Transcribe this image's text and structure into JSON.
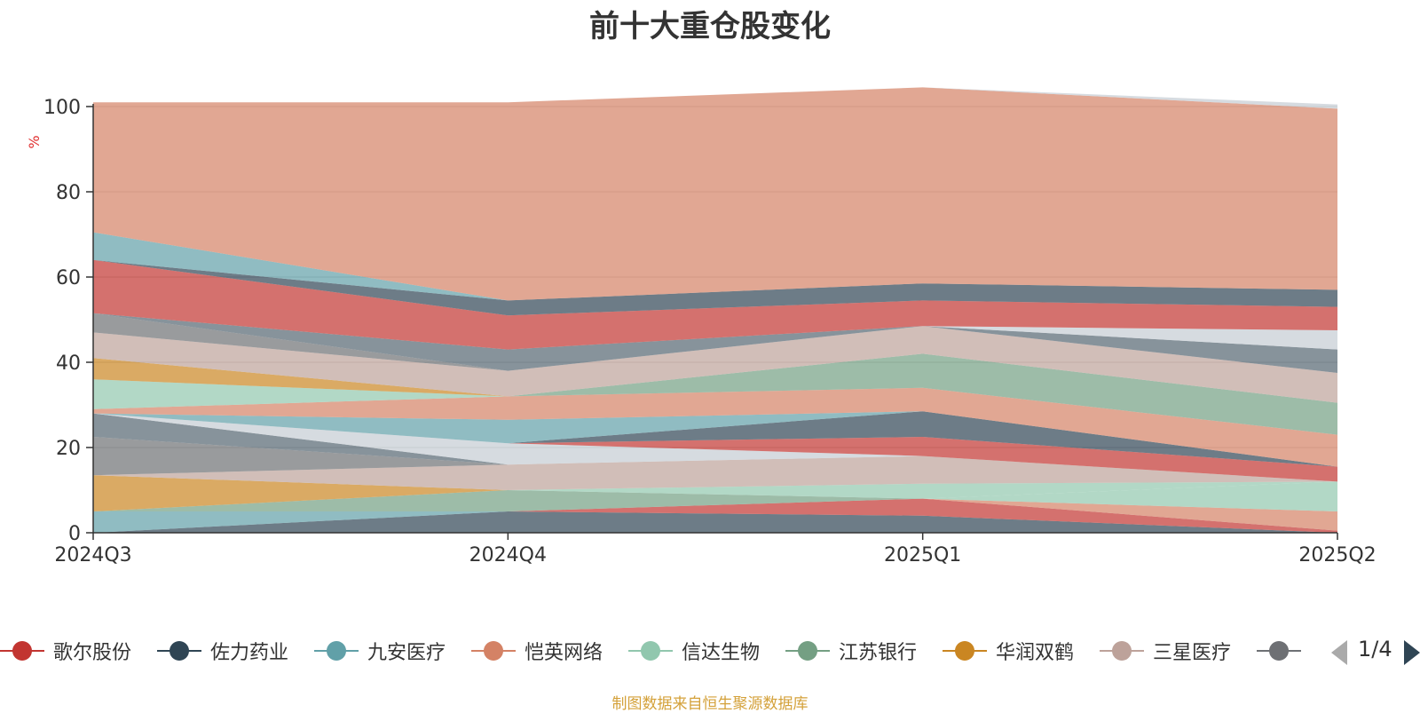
{
  "chart_data": {
    "type": "area",
    "title": "前十大重仓股变化",
    "ylabel": "%",
    "ylim": [
      0,
      100
    ],
    "yticks": [
      0,
      20,
      40,
      60,
      80,
      100
    ],
    "categories": [
      "2024Q3",
      "2024Q4",
      "2025Q1",
      "2025Q2"
    ],
    "stacked_percent": true,
    "series": [
      {
        "color": "#2f4554",
        "values": [
          0.0,
          5.0,
          4.0,
          0.0
        ]
      },
      {
        "color": "#c23531",
        "values": [
          0.0,
          0.0,
          4.0,
          0.5
        ]
      },
      {
        "color": "#d48265",
        "values": [
          0.0,
          0.0,
          0.0,
          4.5
        ]
      },
      {
        "color": "#91c7ae",
        "values": [
          0.0,
          0.0,
          0.0,
          7.0
        ]
      },
      {
        "color": "#61a0a8",
        "values": [
          5.0,
          0.0,
          0.0,
          0.0
        ]
      },
      {
        "color": "#749f83",
        "values": [
          0.0,
          5.0,
          0.0,
          0.0
        ]
      },
      {
        "color": "#91c7ae",
        "values": [
          0.0,
          0.0,
          3.5,
          0.0
        ]
      },
      {
        "color": "#ca8622",
        "values": [
          8.5,
          0.0,
          0.0,
          0.0
        ]
      },
      {
        "color": "#bda29a",
        "values": [
          0.0,
          6.0,
          6.5,
          0.0
        ]
      },
      {
        "color": "#6e7074",
        "values": [
          9.0,
          0.0,
          0.0,
          0.0
        ]
      },
      {
        "color": "#2f4554",
        "values": [
          0.0,
          0.0,
          0.0,
          0.0
        ]
      },
      {
        "color": "#546570",
        "values": [
          5.5,
          0.0,
          0.0,
          0.0
        ]
      },
      {
        "color": "#c4ccd3",
        "values": [
          0.0,
          5.0,
          0.0,
          0.0
        ]
      },
      {
        "color": "#c23531",
        "values": [
          0.0,
          0.0,
          4.5,
          3.5
        ]
      },
      {
        "color": "#2f4554",
        "values": [
          0.0,
          0.0,
          6.0,
          0.0
        ]
      },
      {
        "color": "#61a0a8",
        "values": [
          0.0,
          5.5,
          0.0,
          0.0
        ]
      },
      {
        "color": "#d48265",
        "values": [
          1.0,
          5.5,
          5.5,
          7.5
        ]
      },
      {
        "color": "#91c7ae",
        "values": [
          7.0,
          0.0,
          0.0,
          0.0
        ]
      },
      {
        "color": "#749f83",
        "values": [
          0.0,
          0.0,
          8.0,
          7.5
        ]
      },
      {
        "color": "#ca8622",
        "values": [
          5.0,
          0.0,
          0.0,
          0.0
        ]
      },
      {
        "color": "#bda29a",
        "values": [
          6.0,
          6.0,
          6.5,
          7.0
        ]
      },
      {
        "color": "#6e7074",
        "values": [
          4.5,
          0.0,
          0.0,
          0.0
        ]
      },
      {
        "color": "#546570",
        "values": [
          0.0,
          5.0,
          0.0,
          5.5
        ]
      },
      {
        "color": "#c4ccd3",
        "values": [
          0.0,
          0.0,
          0.0,
          4.5
        ]
      },
      {
        "color": "#c23531",
        "values": [
          12.5,
          8.0,
          6.0,
          5.5
        ]
      },
      {
        "color": "#2f4554",
        "values": [
          0.0,
          3.5,
          4.0,
          4.0
        ]
      },
      {
        "color": "#61a0a8",
        "values": [
          6.5,
          0.0,
          0.0,
          0.0
        ]
      },
      {
        "color": "#d48265",
        "values": [
          30.5,
          46.5,
          46.0,
          42.5
        ]
      },
      {
        "color": "#c4ccd3",
        "values": [
          0.0,
          0.0,
          0.0,
          1.0
        ]
      }
    ]
  },
  "legend": {
    "items": [
      {
        "label": "歌尔股份",
        "color": "#c23531"
      },
      {
        "label": "佐力药业",
        "color": "#2f4554"
      },
      {
        "label": "九安医疗",
        "color": "#61a0a8"
      },
      {
        "label": "恺英网络",
        "color": "#d48265"
      },
      {
        "label": "信达生物",
        "color": "#91c7ae"
      },
      {
        "label": "江苏银行",
        "color": "#749f83"
      },
      {
        "label": "华润双鹤",
        "color": "#ca8622"
      },
      {
        "label": "三星医疗",
        "color": "#bda29a"
      },
      {
        "label": "",
        "color": "#6e7074"
      }
    ],
    "page": "1/4"
  },
  "source_note": "制图数据来自恒生聚源数据库"
}
